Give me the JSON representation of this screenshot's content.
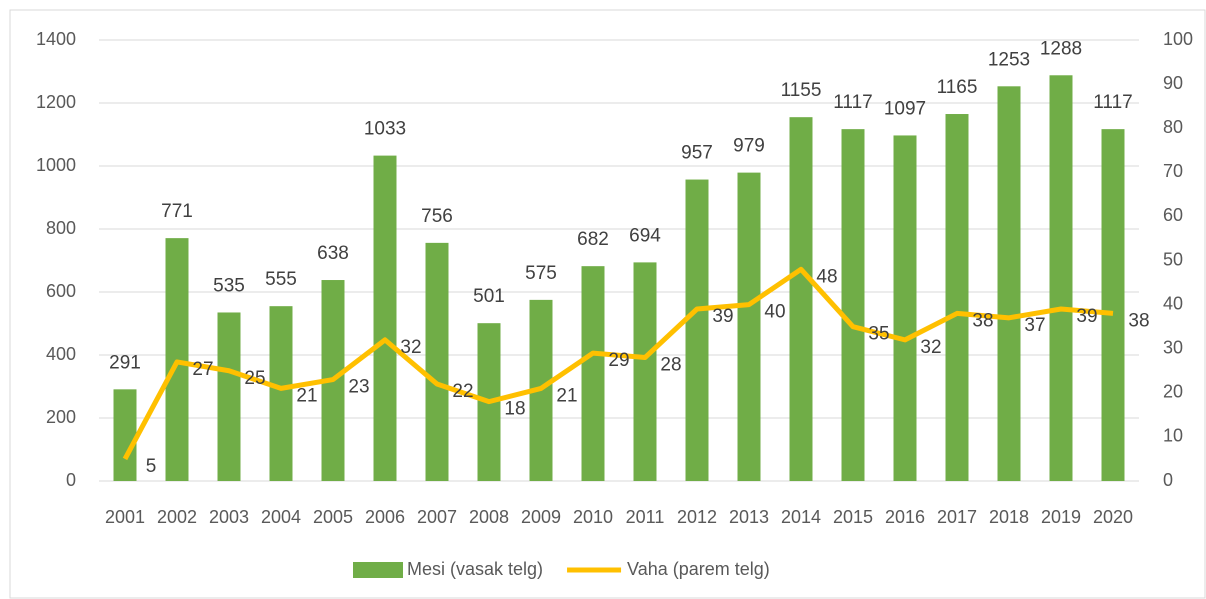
{
  "chart_data": {
    "type": "bar",
    "categories": [
      "2001",
      "2002",
      "2003",
      "2004",
      "2005",
      "2006",
      "2007",
      "2008",
      "2009",
      "2010",
      "2011",
      "2012",
      "2013",
      "2014",
      "2015",
      "2016",
      "2017",
      "2018",
      "2019",
      "2020"
    ],
    "series": [
      {
        "name": "Mesi (vasak telg)",
        "type": "bar",
        "color": "#70ad47",
        "values": [
          291,
          771,
          535,
          555,
          638,
          1033,
          756,
          501,
          575,
          682,
          694,
          957,
          979,
          1155,
          1117,
          1097,
          1165,
          1253,
          1288,
          1117
        ]
      },
      {
        "name": "Vaha (parem telg)",
        "type": "line",
        "axis": "y2",
        "color": "#ffc000",
        "values": [
          5,
          27,
          25,
          21,
          23,
          32,
          22,
          18,
          21,
          29,
          28,
          39,
          40,
          48,
          35,
          32,
          38,
          37,
          39,
          38
        ]
      }
    ],
    "ylim": [
      0,
      1400
    ],
    "yticks": [
      0,
      200,
      400,
      600,
      800,
      1000,
      1200,
      1400
    ],
    "y2lim": [
      0,
      100
    ],
    "y2ticks": [
      0,
      10,
      20,
      30,
      40,
      50,
      60,
      70,
      80,
      90,
      100
    ],
    "legend": "bottom"
  }
}
